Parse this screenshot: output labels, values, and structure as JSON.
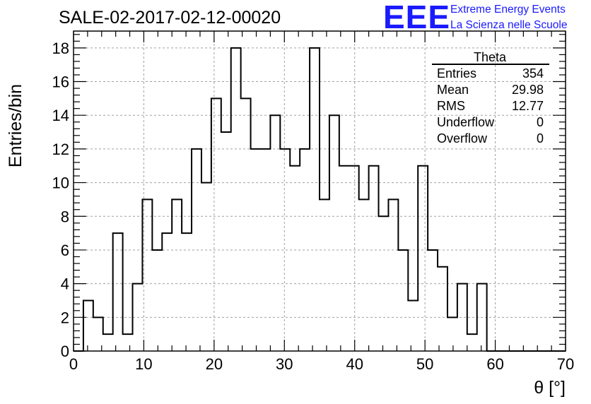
{
  "chart_data": {
    "type": "bar",
    "title": "SALE-02-2017-02-12-00020",
    "xlabel": "θ [°]",
    "ylabel": "Entries/bin",
    "xlim": [
      0,
      70
    ],
    "ylim": [
      0,
      19
    ],
    "x_ticks": [
      0,
      10,
      20,
      30,
      40,
      50,
      60,
      70
    ],
    "y_ticks": [
      0,
      2,
      4,
      6,
      8,
      10,
      12,
      14,
      16,
      18
    ],
    "grid": true,
    "bin_edges": [
      0,
      1.4,
      2.8,
      4.2,
      5.6,
      7.0,
      8.4,
      9.8,
      11.2,
      12.6,
      14.0,
      15.4,
      16.8,
      18.2,
      19.6,
      21.0,
      22.4,
      23.8,
      25.2,
      26.6,
      28.0,
      29.4,
      30.8,
      32.2,
      33.6,
      35.0,
      36.4,
      37.8,
      39.2,
      40.6,
      42.0,
      43.4,
      44.8,
      46.2,
      47.6,
      49.0,
      50.4,
      51.8,
      53.2,
      54.6,
      56.0,
      57.4,
      58.8,
      60.2,
      61.6,
      63.0,
      64.4,
      65.8,
      67.2,
      68.6,
      70.0
    ],
    "values": [
      0,
      3,
      2,
      1,
      7,
      1,
      4,
      9,
      6,
      7,
      9,
      7,
      12,
      10,
      15,
      13,
      18,
      15,
      12,
      12,
      14,
      12,
      11,
      12,
      18,
      9,
      14,
      11,
      11,
      9,
      11,
      8,
      9,
      6,
      3,
      11,
      6,
      5,
      2,
      4,
      1,
      4,
      0,
      0,
      0,
      0,
      0,
      0,
      0,
      0
    ],
    "stats_box": {
      "name": "Theta",
      "rows": [
        {
          "label": "Entries",
          "value": "354"
        },
        {
          "label": "Mean",
          "value": "29.98"
        },
        {
          "label": "RMS",
          "value": "12.77"
        },
        {
          "label": "Underflow",
          "value": "0"
        },
        {
          "label": "Overflow",
          "value": "0"
        }
      ]
    },
    "logo": {
      "mark": "EEE",
      "line1": "Extreme Energy Events",
      "line2": "La Scienza nelle Scuole"
    },
    "colors": {
      "histogram": "#000000",
      "grid": "#a0a0a0",
      "logo": "#1a1aff"
    }
  }
}
